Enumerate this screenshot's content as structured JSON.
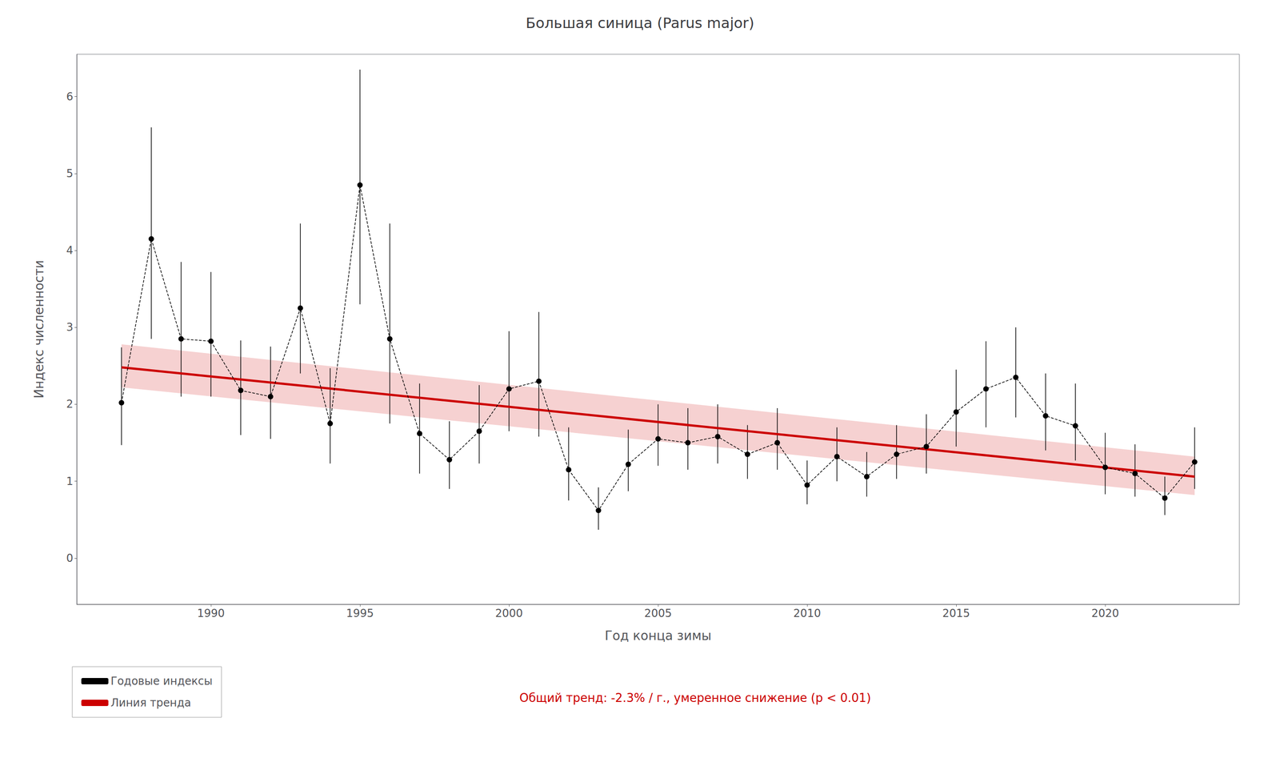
{
  "chart_data": {
    "type": "line",
    "title": "Большая синица (Parus major)",
    "xlabel": "Год конца зимы",
    "ylabel": "Индекс численности",
    "xlim": [
      1985.5,
      2024.5
    ],
    "xticks": [
      1990,
      1995,
      2000,
      2005,
      2010,
      2015,
      2020
    ],
    "ylim": [
      -0.6,
      6.55
    ],
    "yticks": [
      0,
      1,
      2,
      3,
      4,
      5,
      6
    ],
    "grid": false,
    "legend": "bottom left",
    "annotations": [
      "Общий тренд: -2.3% / г., умеренное снижение (p < 0.01)"
    ],
    "series": [
      {
        "name": "Годовые индексы",
        "color": "#000000",
        "marker": "circle",
        "line_style": "dashed",
        "x": [
          1987,
          1988,
          1989,
          1990,
          1991,
          1992,
          1993,
          1994,
          1995,
          1996,
          1997,
          1998,
          1999,
          2000,
          2001,
          2002,
          2003,
          2004,
          2005,
          2006,
          2007,
          2008,
          2009,
          2010,
          2011,
          2012,
          2013,
          2014,
          2015,
          2016,
          2017,
          2018,
          2019,
          2020,
          2021,
          2022,
          2023
        ],
        "values": [
          2.02,
          4.15,
          2.85,
          2.82,
          2.18,
          2.1,
          3.25,
          1.75,
          4.85,
          2.85,
          1.62,
          1.28,
          1.65,
          2.2,
          2.3,
          1.15,
          0.62,
          1.22,
          1.55,
          1.5,
          1.58,
          1.35,
          1.5,
          0.95,
          1.32,
          1.06,
          1.35,
          1.45,
          1.9,
          2.2,
          2.35,
          1.85,
          1.72,
          1.18,
          1.1,
          0.78,
          1.25
        ],
        "yerr_low": [
          0.55,
          1.3,
          0.75,
          0.72,
          0.58,
          0.55,
          0.85,
          0.52,
          1.55,
          1.1,
          0.52,
          0.38,
          0.42,
          0.55,
          0.72,
          0.4,
          0.25,
          0.35,
          0.35,
          0.35,
          0.35,
          0.32,
          0.35,
          0.25,
          0.32,
          0.26,
          0.32,
          0.35,
          0.45,
          0.5,
          0.52,
          0.45,
          0.45,
          0.35,
          0.3,
          0.22,
          0.35
        ],
        "yerr_high": [
          0.72,
          1.45,
          1.0,
          0.9,
          0.65,
          0.65,
          1.1,
          0.72,
          1.5,
          1.5,
          0.65,
          0.5,
          0.6,
          0.75,
          0.9,
          0.55,
          0.3,
          0.45,
          0.45,
          0.45,
          0.42,
          0.38,
          0.45,
          0.32,
          0.38,
          0.32,
          0.38,
          0.42,
          0.55,
          0.62,
          0.65,
          0.55,
          0.55,
          0.45,
          0.38,
          0.28,
          0.45
        ]
      },
      {
        "name": "Линия тренда",
        "color": "#cc0000",
        "line_style": "solid",
        "x": [
          1987,
          2023
        ],
        "values": [
          2.48,
          1.06
        ],
        "ci_lower": [
          2.22,
          0.82
        ],
        "ci_upper": [
          2.78,
          1.32
        ]
      }
    ]
  }
}
